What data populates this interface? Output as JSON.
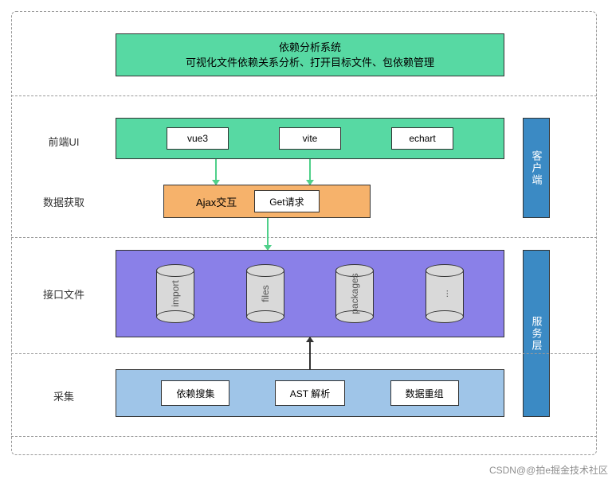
{
  "colors": {
    "green": "#57d9a3",
    "orange": "#f6b26b",
    "purple": "#8a80e8",
    "lightblue": "#9fc5e8",
    "railblue": "#3b8ac4",
    "arrowgreen": "#4fd08a",
    "arrowblack": "#333333",
    "cylinder": "#d9d9d9"
  },
  "top": {
    "title": "依赖分析系统",
    "subtitle": "可视化文件依赖关系分析、打开目标文件、包依赖管理"
  },
  "row1": {
    "label": "前端UI",
    "items": [
      "vue3",
      "vite",
      "echart"
    ]
  },
  "row2": {
    "label": "数据获取",
    "leftText": "Ajax交互",
    "box": "Get请求"
  },
  "row3": {
    "label": "接口文件",
    "cylinders": [
      "import",
      "files",
      "packages",
      "..."
    ]
  },
  "row4": {
    "label": "采集",
    "items": [
      "依赖搜集",
      "AST 解析",
      "数据重组"
    ]
  },
  "rail1": "客户端",
  "rail2": "服务层",
  "watermark": "CSDN@@拍e掘金技术社区"
}
